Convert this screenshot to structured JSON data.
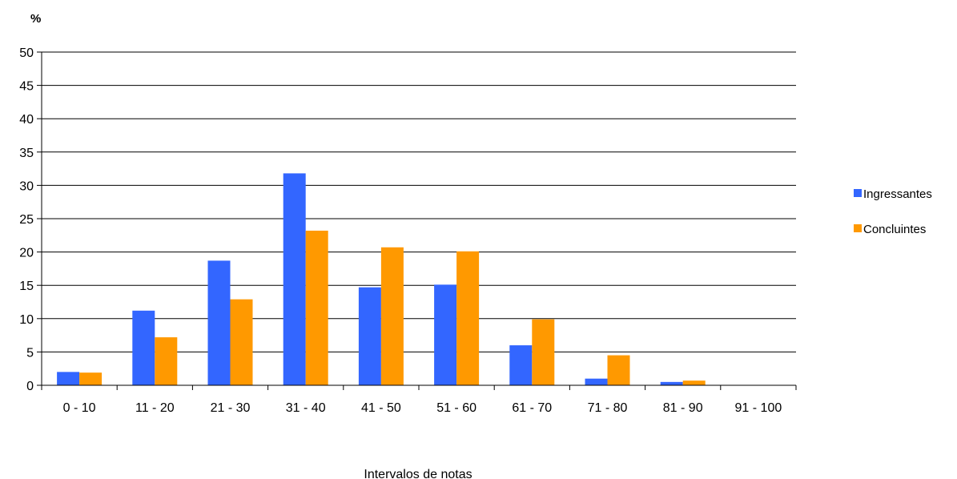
{
  "chart_data": {
    "type": "bar",
    "categories": [
      "0 - 10",
      "11 - 20",
      "21 - 30",
      "31 - 40",
      "41 - 50",
      "51 - 60",
      "61 - 70",
      "71 - 80",
      "81 - 90",
      "91 - 100"
    ],
    "series": [
      {
        "name": "Ingressantes",
        "values": [
          2.0,
          11.2,
          18.7,
          31.8,
          14.7,
          15.1,
          6.0,
          1.0,
          0.5,
          0
        ],
        "color": "#3366FF"
      },
      {
        "name": "Concluintes",
        "values": [
          1.9,
          7.2,
          12.9,
          23.2,
          20.7,
          20.1,
          9.9,
          4.5,
          0.7,
          0
        ],
        "color": "#FF9900"
      }
    ],
    "title": "",
    "ylabel": "%",
    "xlabel": "Intervalos de notas",
    "ylim": [
      0,
      50
    ],
    "yticks": [
      0,
      5,
      10,
      15,
      20,
      25,
      30,
      35,
      40,
      45,
      50
    ],
    "grid": true,
    "legend_position": "right"
  }
}
